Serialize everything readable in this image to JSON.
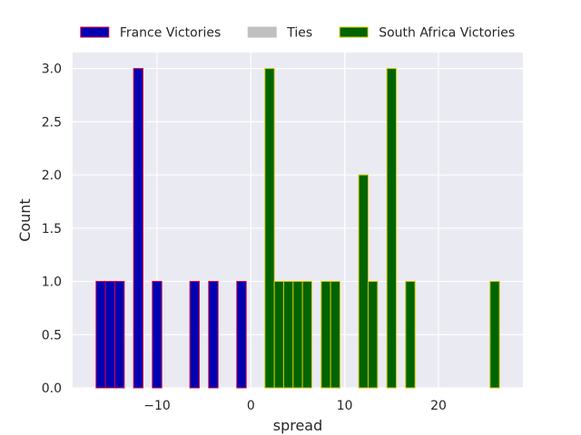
{
  "chart_data": {
    "type": "bar",
    "title": "",
    "xlabel": "spread",
    "ylabel": "Count",
    "xlim": [
      -19,
      29
    ],
    "ylim": [
      0,
      3.15
    ],
    "x_ticks": [
      -10,
      0,
      10,
      20
    ],
    "x_tick_labels": [
      "−10",
      "0",
      "10",
      "20"
    ],
    "y_ticks": [
      0,
      0.5,
      1,
      1.5,
      2,
      2.5,
      3
    ],
    "y_tick_labels": [
      "0.0",
      "0.5",
      "1.0",
      "1.5",
      "2.0",
      "2.5",
      "3.0"
    ],
    "grid": true,
    "legend_position": "top",
    "bin_width": 1,
    "series": [
      {
        "name": "France Victories",
        "fill": "#0000b3",
        "edge": "#d4003b",
        "bins": [
          {
            "x": -16,
            "count": 1
          },
          {
            "x": -15,
            "count": 1
          },
          {
            "x": -14,
            "count": 1
          },
          {
            "x": -12,
            "count": 3
          },
          {
            "x": -10,
            "count": 1
          },
          {
            "x": -6,
            "count": 1
          },
          {
            "x": -4,
            "count": 1
          },
          {
            "x": -1,
            "count": 1
          }
        ]
      },
      {
        "name": "Ties",
        "fill": "#c0c0c0",
        "edge": "#c0c0c0",
        "bins": []
      },
      {
        "name": "South Africa Victories",
        "fill": "#006400",
        "edge": "#d4c600",
        "bins": [
          {
            "x": 2,
            "count": 3
          },
          {
            "x": 3,
            "count": 1
          },
          {
            "x": 4,
            "count": 1
          },
          {
            "x": 5,
            "count": 1
          },
          {
            "x": 6,
            "count": 1
          },
          {
            "x": 8,
            "count": 1
          },
          {
            "x": 9,
            "count": 1
          },
          {
            "x": 12,
            "count": 2
          },
          {
            "x": 13,
            "count": 1
          },
          {
            "x": 15,
            "count": 3
          },
          {
            "x": 17,
            "count": 1
          },
          {
            "x": 26,
            "count": 1
          }
        ]
      }
    ]
  }
}
